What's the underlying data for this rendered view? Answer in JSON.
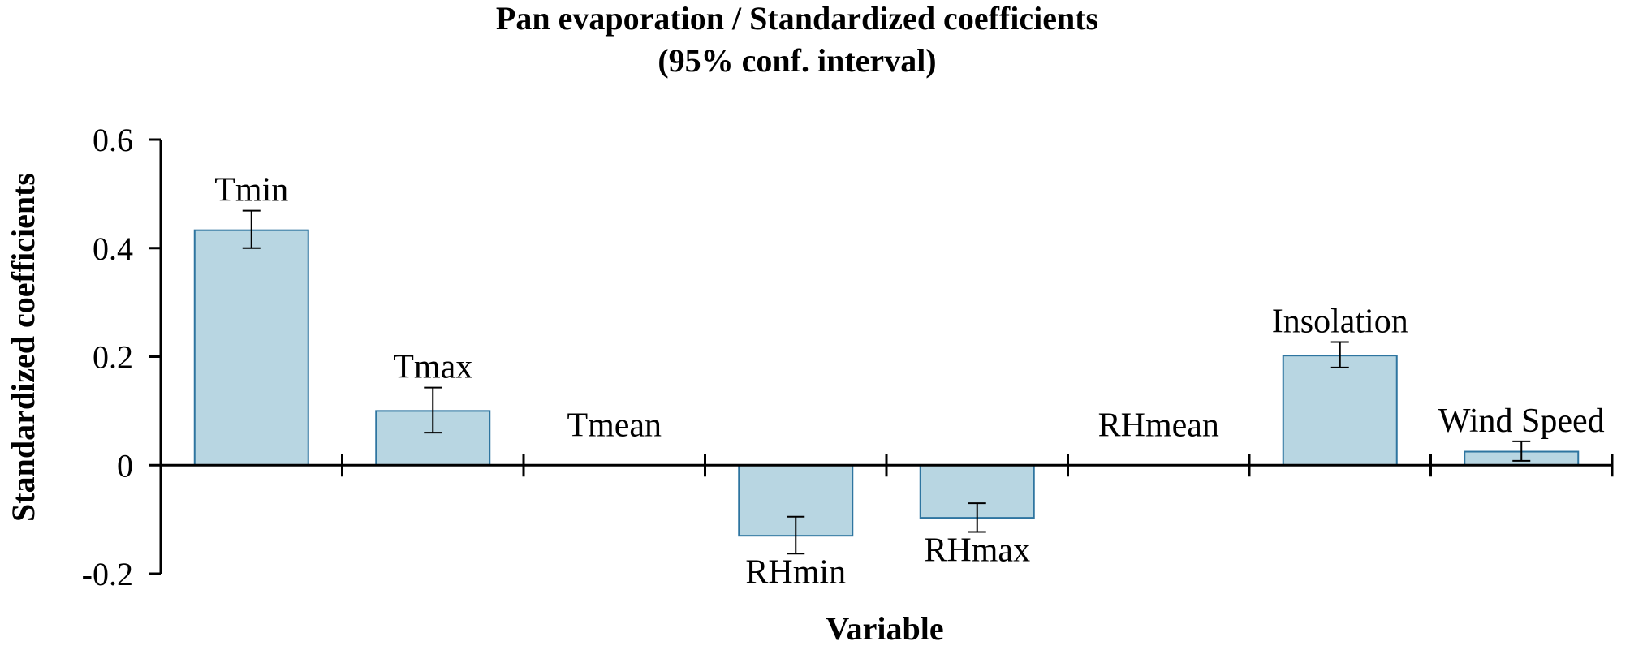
{
  "chart_data": {
    "type": "bar",
    "title": [
      "Pan evaporation / Standardized coefficients",
      "(95% conf. interval)"
    ],
    "xlabel": "Variable",
    "ylabel": "Standardized coefficients",
    "ylim": [
      -0.2,
      0.6
    ],
    "yticks": [
      "0.6",
      "0.4",
      "0.2",
      "0",
      "-0.2"
    ],
    "grid": false,
    "legend": "none",
    "bar_color": "#b8d6e2",
    "bar_edge_color": "#2e75a0",
    "categories": [
      "Tmin",
      "Tmax",
      "Tmean",
      "RHmin",
      "RHmax",
      "RHmean",
      "Insolation",
      "Wind Speed"
    ],
    "values": [
      0.433,
      0.1,
      0,
      -0.13,
      -0.097,
      0,
      0.202,
      0.025
    ],
    "error_low": [
      0.4,
      0.06,
      null,
      -0.163,
      -0.123,
      null,
      0.18,
      0.008
    ],
    "error_high": [
      0.469,
      0.143,
      null,
      -0.095,
      -0.07,
      null,
      0.227,
      0.044
    ]
  }
}
